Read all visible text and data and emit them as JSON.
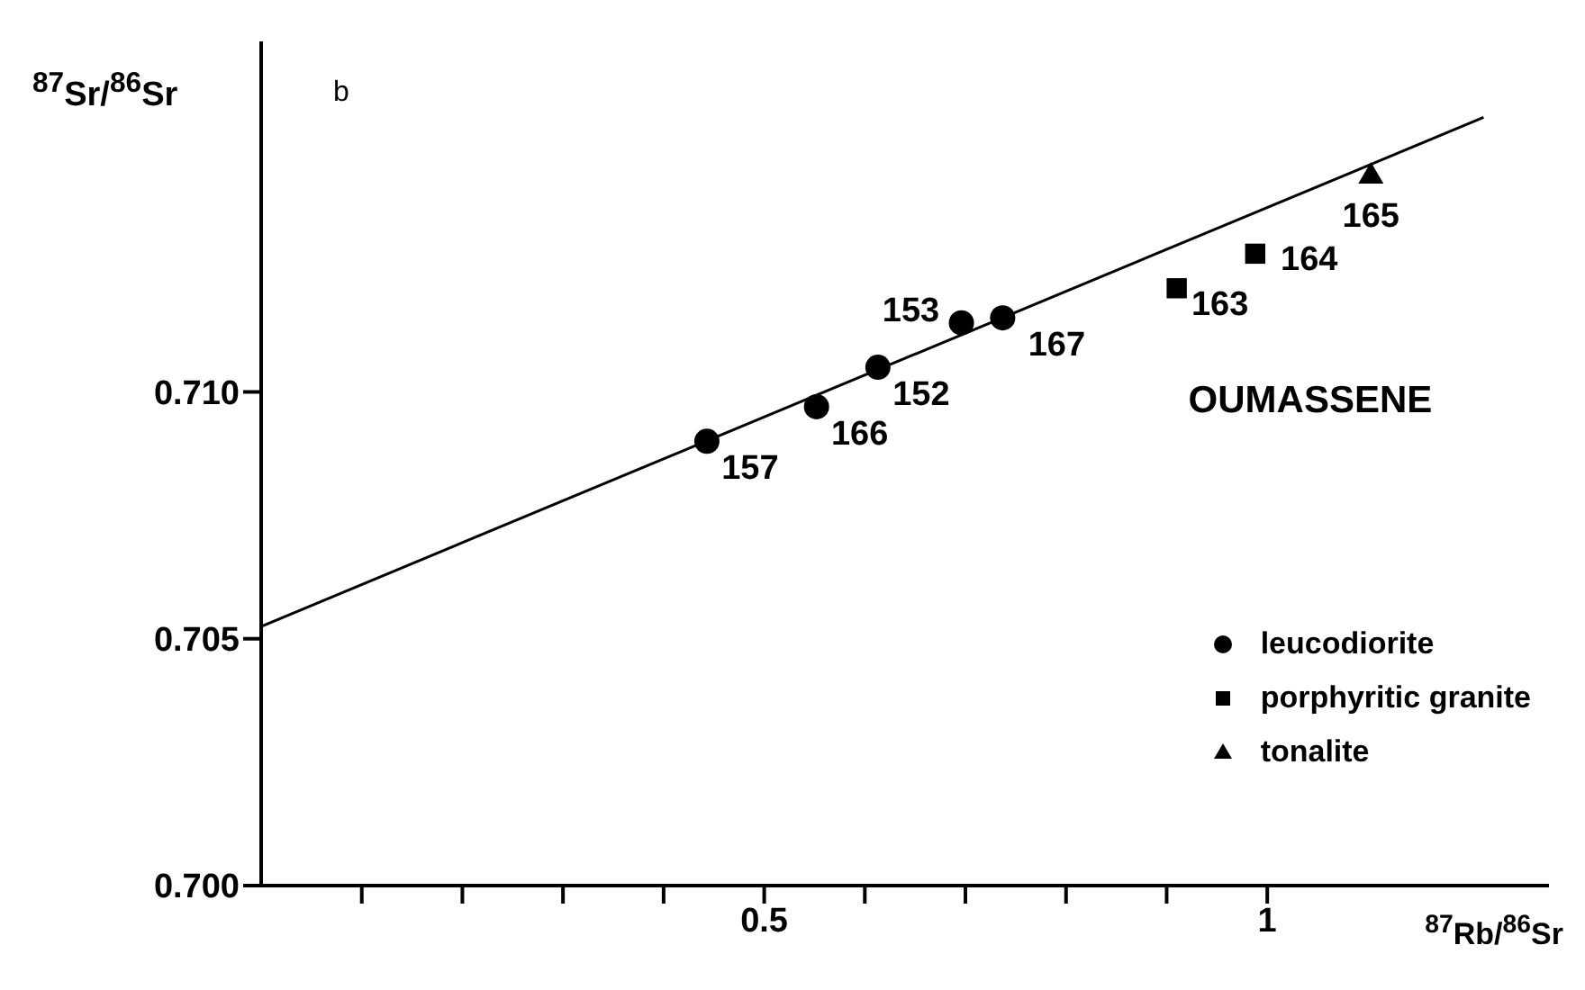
{
  "chart_data": {
    "type": "scatter",
    "xlabel": "$^{87}$Rb/$^{86}$Sr",
    "ylabel": "$^{87}$Sr/$^{86}$Sr",
    "xlim": [
      0,
      1.28
    ],
    "ylim": [
      0.7,
      0.7171
    ],
    "xticks": [
      {
        "value": 0.1,
        "label": null
      },
      {
        "value": 0.2,
        "label": null
      },
      {
        "value": 0.3,
        "label": null
      },
      {
        "value": 0.4,
        "label": null
      },
      0.5,
      {
        "value": 0.6,
        "label": null
      },
      {
        "value": 0.7,
        "label": null
      },
      {
        "value": 0.8,
        "label": null
      },
      {
        "value": 0.9,
        "label": null
      },
      1
    ],
    "yticks": [
      {
        "value": 0.7,
        "label": "0.700"
      },
      0.705,
      {
        "value": 0.71,
        "label": "0.710"
      }
    ],
    "grid": false,
    "legend": "bottom right",
    "series": [
      {
        "name": "leucodiorite",
        "color": "#000000",
        "marker": "circle",
        "x": [
          0.443,
          0.552,
          0.613,
          0.696,
          0.737
        ],
        "values": [
          0.709,
          0.7097,
          0.7105,
          0.7114,
          0.7115
        ]
      },
      {
        "name": "porphyritic granite",
        "color": "#000000",
        "marker": "square",
        "x": [
          0.91,
          0.988
        ],
        "values": [
          0.7121,
          0.7128
        ]
      },
      {
        "name": "tonalite",
        "color": "#000000",
        "marker": "triangle",
        "x": [
          1.103
        ],
        "values": [
          0.7144
        ]
      },
      {
        "type": "line",
        "color": "#000000",
        "marker": "none",
        "x": [
          0,
          1.215
        ],
        "values": [
          0.70525,
          0.71556
        ]
      }
    ],
    "annotations": [
      "b",
      "OUMASSENE",
      {
        "text": "157",
        "x": 0.443,
        "y": 0.709
      },
      {
        "text": "166",
        "x": 0.552,
        "y": 0.7097
      },
      {
        "text": "152",
        "x": 0.613,
        "y": 0.7105
      },
      {
        "text": "153",
        "x": 0.696,
        "y": 0.7114
      },
      {
        "text": "167",
        "x": 0.737,
        "y": 0.7115
      },
      {
        "text": "163",
        "x": 0.91,
        "y": 0.7121
      },
      {
        "text": "164",
        "x": 0.988,
        "y": 0.7128
      },
      {
        "text": "165",
        "x": 1.103,
        "y": 0.7144
      }
    ]
  }
}
